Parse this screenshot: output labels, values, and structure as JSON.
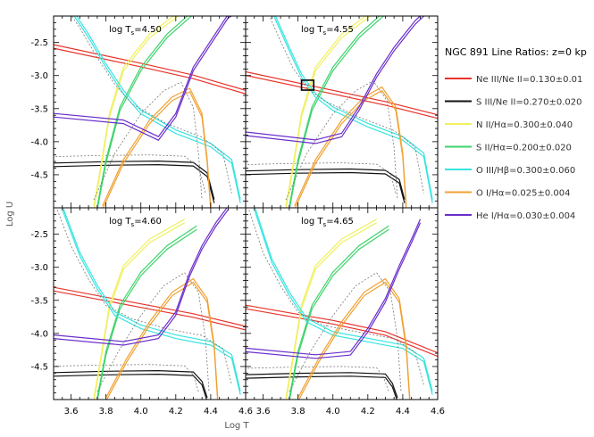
{
  "chart_data": {
    "type": "line",
    "title": "NGC 891 Line Ratios: z=0 kp",
    "xlabel": "Log T",
    "ylabel": "Log U",
    "xlim": [
      3.5,
      4.6
    ],
    "ylim": [
      -5.0,
      -2.1
    ],
    "xticks": [
      "3.6",
      "3.8",
      "4.0",
      "4.2",
      "4.4",
      "4.6"
    ],
    "yticks": [
      "-2.5",
      "-3.0",
      "-3.5",
      "-4.0",
      "-4.5"
    ],
    "grid": false,
    "legend_position": "right",
    "panels": [
      {
        "label": "log T",
        "sub": "s",
        "value": "=4.50",
        "ts": 4.5
      },
      {
        "label": "log T",
        "sub": "s",
        "value": "=4.55",
        "ts": 4.55
      },
      {
        "label": "log T",
        "sub": "s",
        "value": "=4.60",
        "ts": 4.6
      },
      {
        "label": "log T",
        "sub": "s",
        "value": "=4.65",
        "ts": 4.65
      }
    ],
    "highlight_box": {
      "panel": 1,
      "x": [
        3.82,
        3.89
      ],
      "y": [
        -3.22,
        -3.07
      ]
    },
    "series": [
      {
        "name": "Ne III/Ne II=0.130±0.01",
        "color": "#e8332a",
        "panels": [
          {
            "x": [
              3.5,
              4.0,
              4.3,
              4.6
            ],
            "y": [
              -2.56,
              -2.84,
              -3.02,
              -3.25
            ]
          },
          {
            "x": [
              3.5,
              4.0,
              4.3,
              4.6
            ],
            "y": [
              -2.97,
              -3.25,
              -3.42,
              -3.62
            ]
          },
          {
            "x": [
              3.5,
              4.0,
              4.3,
              4.6
            ],
            "y": [
              -3.33,
              -3.58,
              -3.73,
              -3.92
            ]
          },
          {
            "x": [
              3.5,
              4.0,
              4.3,
              4.6
            ],
            "y": [
              -3.6,
              -3.83,
              -4.0,
              -4.32
            ]
          }
        ]
      },
      {
        "name": "S III/Ne II=0.270±0.020",
        "color": "#111111",
        "panels": [
          {
            "x": [
              3.5,
              3.8,
              4.1,
              4.3,
              4.38,
              4.42
            ],
            "y": [
              -4.35,
              -4.33,
              -4.32,
              -4.34,
              -4.5,
              -4.9
            ]
          },
          {
            "x": [
              3.5,
              3.8,
              4.1,
              4.3,
              4.38,
              4.41
            ],
            "y": [
              -4.47,
              -4.45,
              -4.44,
              -4.46,
              -4.6,
              -4.9
            ]
          },
          {
            "x": [
              3.5,
              3.8,
              4.1,
              4.3,
              4.35,
              4.38
            ],
            "y": [
              -4.62,
              -4.6,
              -4.59,
              -4.61,
              -4.75,
              -5.0
            ]
          },
          {
            "x": [
              3.5,
              3.8,
              4.1,
              4.3,
              4.34,
              4.37
            ],
            "y": [
              -4.65,
              -4.63,
              -4.62,
              -4.64,
              -4.78,
              -5.0
            ]
          }
        ]
      },
      {
        "name": "N II/Hα=0.300±0.040",
        "color": "#f0f060",
        "panels": [
          {
            "x": [
              3.73,
              3.77,
              3.82,
              3.9,
              4.05,
              4.25
            ],
            "y": [
              -5.0,
              -4.4,
              -3.6,
              -2.9,
              -2.4,
              -2.0
            ]
          },
          {
            "x": [
              3.73,
              3.77,
              3.82,
              3.9,
              4.05,
              4.25
            ],
            "y": [
              -5.0,
              -4.4,
              -3.6,
              -2.9,
              -2.4,
              -2.0
            ]
          },
          {
            "x": [
              3.73,
              3.77,
              3.82,
              3.9,
              4.05,
              4.25
            ],
            "y": [
              -5.0,
              -4.4,
              -3.6,
              -3.0,
              -2.6,
              -2.3
            ]
          },
          {
            "x": [
              3.73,
              3.77,
              3.82,
              3.9,
              4.05,
              4.25
            ],
            "y": [
              -5.0,
              -4.4,
              -3.6,
              -3.0,
              -2.6,
              -2.3
            ]
          }
        ]
      },
      {
        "name": "S II/Hα=0.200±0.020",
        "color": "#3dd36a",
        "panels": [
          {
            "x": [
              3.75,
              3.8,
              3.88,
              4.0,
              4.15,
              4.32
            ],
            "y": [
              -5.0,
              -4.3,
              -3.5,
              -2.9,
              -2.4,
              -2.0
            ]
          },
          {
            "x": [
              3.75,
              3.8,
              3.88,
              4.0,
              4.15,
              4.32
            ],
            "y": [
              -5.0,
              -4.3,
              -3.5,
              -2.9,
              -2.4,
              -2.0
            ]
          },
          {
            "x": [
              3.75,
              3.8,
              3.88,
              4.0,
              4.15,
              4.32
            ],
            "y": [
              -5.0,
              -4.3,
              -3.6,
              -3.1,
              -2.7,
              -2.4
            ]
          },
          {
            "x": [
              3.75,
              3.8,
              3.88,
              4.0,
              4.15,
              4.32
            ],
            "y": [
              -5.0,
              -4.3,
              -3.6,
              -3.1,
              -2.7,
              -2.4
            ]
          }
        ]
      },
      {
        "name": "O III/Hβ=0.300±0.060",
        "color": "#38e4e0",
        "panels": [
          {
            "x": [
              3.6,
              3.7,
              3.8,
              3.9,
              4.0,
              4.2,
              4.4,
              4.52,
              4.57
            ],
            "y": [
              -2.0,
              -2.4,
              -2.85,
              -3.25,
              -3.55,
              -3.85,
              -4.05,
              -4.3,
              -4.9
            ]
          },
          {
            "x": [
              3.65,
              3.75,
              3.82,
              3.9,
              4.0,
              4.2,
              4.4,
              4.52,
              4.57
            ],
            "y": [
              -2.0,
              -2.6,
              -3.0,
              -3.3,
              -3.5,
              -3.75,
              -3.95,
              -4.2,
              -4.9
            ]
          },
          {
            "x": [
              3.55,
              3.65,
              3.75,
              3.85,
              4.0,
              4.2,
              4.4,
              4.52,
              4.57
            ],
            "y": [
              -2.1,
              -2.8,
              -3.3,
              -3.7,
              -3.9,
              -4.05,
              -4.15,
              -4.35,
              -4.9
            ]
          },
          {
            "x": [
              3.55,
              3.65,
              3.75,
              3.85,
              4.0,
              4.2,
              4.4,
              4.52,
              4.57
            ],
            "y": [
              -2.1,
              -2.9,
              -3.4,
              -3.8,
              -4.0,
              -4.1,
              -4.2,
              -4.4,
              -4.9
            ]
          }
        ]
      },
      {
        "name": "O I/Hα=0.025±0.004",
        "color": "#f0a030",
        "panels": [
          {
            "x": [
              3.78,
              3.9,
              4.05,
              4.18,
              4.28,
              4.35,
              4.38,
              4.4
            ],
            "y": [
              -5.0,
              -4.3,
              -3.7,
              -3.35,
              -3.22,
              -3.6,
              -4.3,
              -5.0
            ]
          },
          {
            "x": [
              3.78,
              3.9,
              4.05,
              4.18,
              4.28,
              4.36,
              4.4,
              4.42
            ],
            "y": [
              -5.0,
              -4.3,
              -3.7,
              -3.35,
              -3.2,
              -3.5,
              -4.2,
              -5.0
            ]
          },
          {
            "x": [
              3.8,
              3.92,
              4.05,
              4.18,
              4.3,
              4.38,
              4.42,
              4.44
            ],
            "y": [
              -5.0,
              -4.4,
              -3.85,
              -3.4,
              -3.2,
              -3.5,
              -4.2,
              -5.0
            ]
          },
          {
            "x": [
              3.8,
              3.92,
              4.05,
              4.18,
              4.3,
              4.38,
              4.42,
              4.44
            ],
            "y": [
              -5.0,
              -4.4,
              -3.85,
              -3.4,
              -3.2,
              -3.5,
              -4.2,
              -5.0
            ]
          }
        ]
      },
      {
        "name": "He I/Hα=0.030±0.004",
        "color": "#6a2ecb",
        "panels": [
          {
            "x": [
              3.5,
              3.9,
              4.1,
              4.2,
              4.3,
              4.4,
              4.5,
              4.57
            ],
            "y": [
              -3.6,
              -3.7,
              -3.95,
              -3.6,
              -2.9,
              -2.5,
              -2.1,
              -2.0
            ]
          },
          {
            "x": [
              3.5,
              3.9,
              4.05,
              4.15,
              4.25,
              4.35,
              4.47,
              4.55
            ],
            "y": [
              -3.88,
              -4.0,
              -3.9,
              -3.5,
              -3.0,
              -2.6,
              -2.2,
              -2.0
            ]
          },
          {
            "x": [
              3.5,
              3.9,
              4.1,
              4.2,
              4.28,
              4.35,
              4.43,
              4.5
            ],
            "y": [
              -4.05,
              -4.15,
              -4.05,
              -3.7,
              -3.1,
              -2.7,
              -2.35,
              -2.1
            ]
          },
          {
            "x": [
              3.5,
              3.9,
              4.1,
              4.2,
              4.3,
              4.38,
              4.45,
              4.5
            ],
            "y": [
              -4.25,
              -4.35,
              -4.3,
              -3.95,
              -3.5,
              -3.0,
              -2.6,
              -2.3
            ]
          }
        ]
      }
    ]
  }
}
